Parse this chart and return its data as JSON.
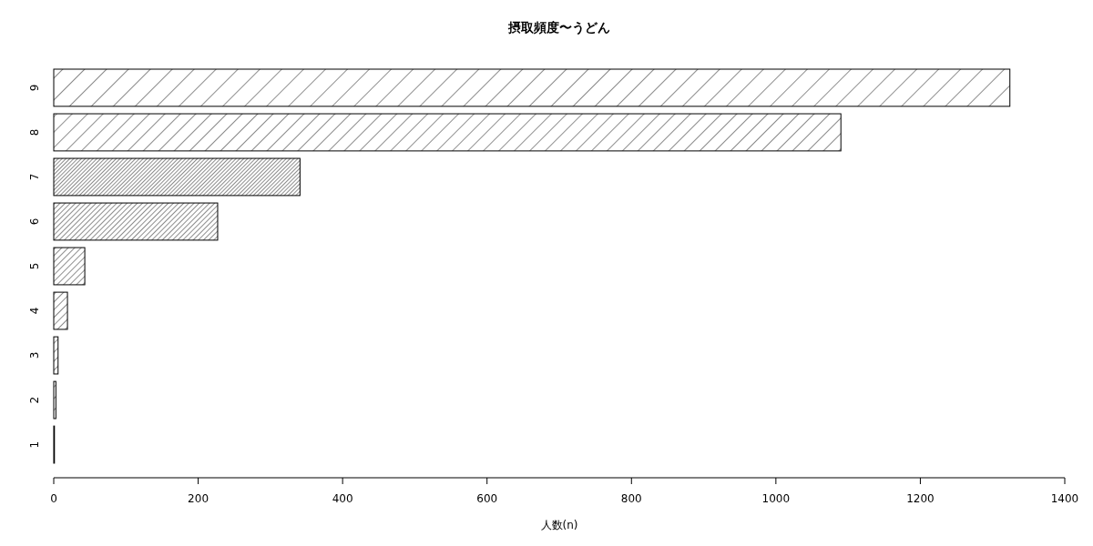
{
  "chart_data": {
    "type": "bar",
    "orientation": "horizontal",
    "title": "摂取頻度〜うどん",
    "xlabel": "人数(n)",
    "categories": [
      "9",
      "8",
      "7",
      "6",
      "5",
      "4",
      "3",
      "2",
      "1"
    ],
    "values": [
      1324,
      1090,
      341,
      227,
      43,
      19,
      6,
      3,
      1
    ],
    "xlim": [
      0,
      1400
    ],
    "xticks": [
      0,
      200,
      400,
      600,
      800,
      1000,
      1200,
      1400
    ],
    "grid": false
  }
}
